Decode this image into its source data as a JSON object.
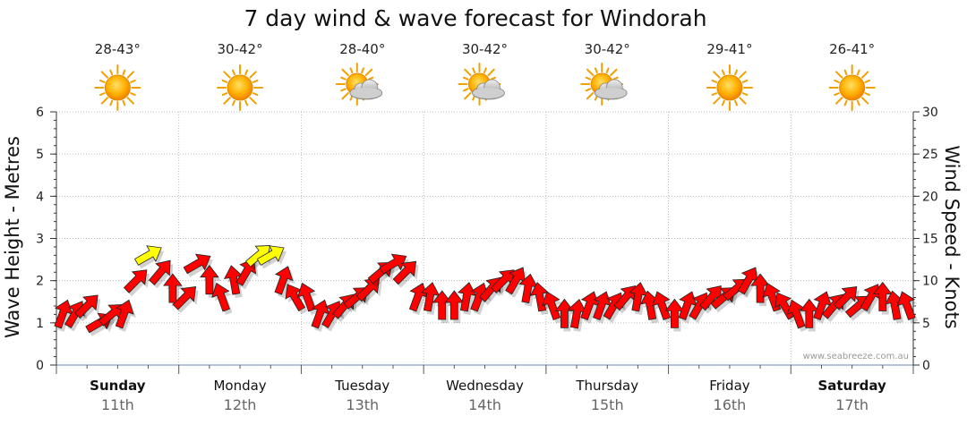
{
  "chart_data": {
    "type": "scatter",
    "title": "7 day wind & wave forecast for Windorah",
    "ylabel_left": "Wave Height - Metres",
    "ylabel_right": "Wind Speed - Knots",
    "ylim_left": [
      0,
      6
    ],
    "ylim_right": [
      0,
      30
    ],
    "yticks_left": [
      "0",
      "1",
      "2",
      "3",
      "4",
      "5",
      "6"
    ],
    "yticks_right": [
      "0",
      "5",
      "10",
      "15",
      "20",
      "25",
      "30"
    ],
    "grid": true,
    "days": [
      {
        "name": "Sunday",
        "date": "11th",
        "temp": "28-43°",
        "icon": "sun-icon",
        "bold": true
      },
      {
        "name": "Monday",
        "date": "12th",
        "temp": "30-42°",
        "icon": "sun-icon",
        "bold": false
      },
      {
        "name": "Tuesday",
        "date": "13th",
        "temp": "28-40°",
        "icon": "partly-cloudy-icon",
        "bold": false
      },
      {
        "name": "Wednesday",
        "date": "14th",
        "temp": "30-42°",
        "icon": "partly-cloudy-icon",
        "bold": false
      },
      {
        "name": "Thursday",
        "date": "15th",
        "temp": "30-42°",
        "icon": "partly-cloudy-icon",
        "bold": false
      },
      {
        "name": "Friday",
        "date": "16th",
        "temp": "29-41°",
        "icon": "sun-icon",
        "bold": false
      },
      {
        "name": "Saturday",
        "date": "17th",
        "temp": "26-41°",
        "icon": "sun-icon",
        "bold": true
      }
    ],
    "series": [
      {
        "name": "Wind Speed - Knots",
        "color_low": "#ff0000",
        "color_high": "#ffff00",
        "yellow_threshold_knots": 12.5,
        "x_day_fraction": [
          0.05,
          0.15,
          0.25,
          0.35,
          0.45,
          0.55,
          0.65,
          0.75,
          0.85,
          0.95,
          1.05,
          1.15,
          1.25,
          1.35,
          1.45,
          1.55,
          1.65,
          1.75,
          1.85,
          1.95,
          2.05,
          2.15,
          2.25,
          2.35,
          2.45,
          2.55,
          2.65,
          2.75,
          2.85,
          2.95,
          3.05,
          3.15,
          3.25,
          3.35,
          3.45,
          3.55,
          3.65,
          3.75,
          3.85,
          3.95,
          4.05,
          4.15,
          4.25,
          4.35,
          4.45,
          4.55,
          4.65,
          4.75,
          4.85,
          4.95,
          5.05,
          5.15,
          5.25,
          5.35,
          5.45,
          5.55,
          5.65,
          5.75,
          5.85,
          5.95,
          6.05,
          6.15,
          6.25,
          6.35,
          6.45,
          6.55,
          6.65,
          6.75,
          6.85,
          6.95
        ],
        "knots": [
          6,
          6,
          7,
          5,
          6,
          6,
          10,
          13,
          11,
          9,
          8,
          12,
          10,
          8,
          10,
          11,
          13,
          13,
          10,
          8,
          8,
          6,
          6,
          7,
          8,
          9,
          11,
          12,
          11,
          8,
          8,
          7,
          7,
          8,
          8,
          9,
          10,
          10,
          9,
          8,
          7,
          6,
          6,
          7,
          7,
          7,
          8,
          8,
          7,
          7,
          6,
          7,
          7,
          8,
          8,
          9,
          10,
          9,
          8,
          7,
          6,
          6,
          7,
          7,
          8,
          7,
          8,
          8,
          7,
          7
        ],
        "direction_deg": [
          70,
          60,
          45,
          30,
          40,
          70,
          45,
          30,
          50,
          90,
          45,
          30,
          90,
          110,
          100,
          60,
          40,
          30,
          70,
          120,
          110,
          70,
          60,
          50,
          40,
          45,
          40,
          30,
          45,
          70,
          80,
          90,
          90,
          80,
          70,
          50,
          45,
          60,
          80,
          100,
          110,
          90,
          80,
          70,
          70,
          60,
          50,
          80,
          100,
          110,
          90,
          70,
          60,
          50,
          40,
          40,
          60,
          90,
          110,
          120,
          110,
          90,
          70,
          50,
          45,
          40,
          60,
          90,
          100,
          110
        ]
      }
    ],
    "credit": "www.seabreeze.com.au"
  }
}
